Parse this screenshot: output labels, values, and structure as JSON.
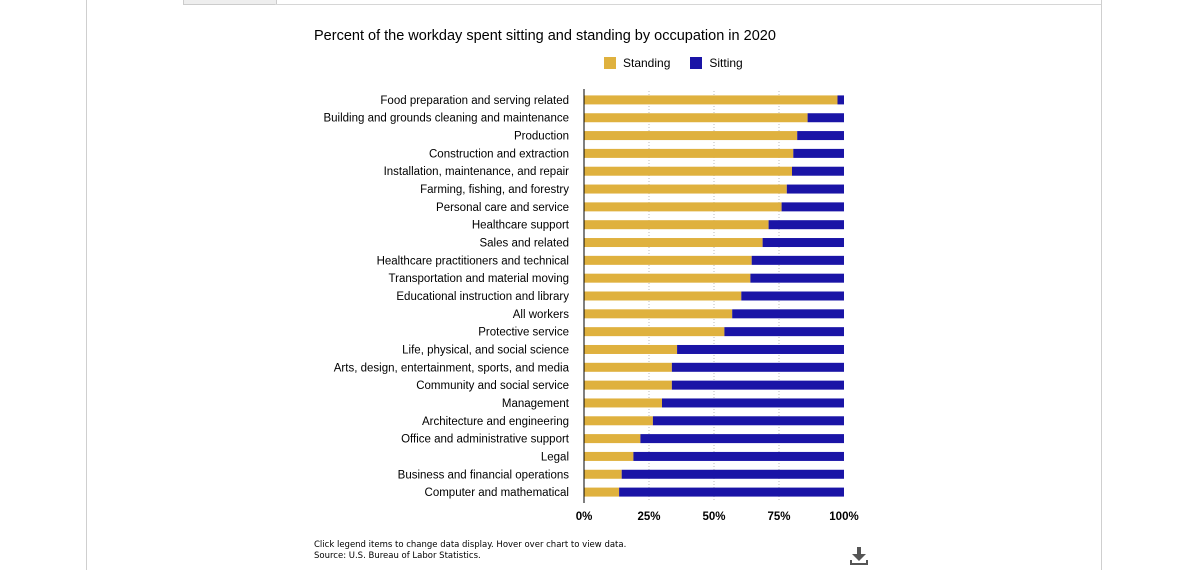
{
  "chart_data": {
    "type": "bar",
    "orientation": "horizontal",
    "stacked": "percent",
    "title": "Percent of the workday spent sitting and standing by occupation in 2020",
    "categories": [
      "Food preparation and serving related",
      "Building and grounds cleaning and maintenance",
      "Production",
      "Construction and extraction",
      "Installation, maintenance, and repair",
      "Farming, fishing, and forestry",
      "Personal care and service",
      "Healthcare support",
      "Sales and related",
      "Healthcare practitioners and technical",
      "Transportation and material moving",
      "Educational instruction and library",
      "All workers",
      "Protective service",
      "Life, physical, and social science",
      "Arts, design, entertainment, sports, and media",
      "Community and social service",
      "Management",
      "Architecture and engineering",
      "Office and administrative support",
      "Legal",
      "Business and financial operations",
      "Computer and mathematical"
    ],
    "series": [
      {
        "name": "Standing",
        "color": "#dfb13e",
        "values": [
          97.5,
          86,
          82,
          80.5,
          80,
          78,
          76,
          71,
          68.7,
          64.5,
          64,
          60.5,
          57,
          54,
          35.8,
          33.8,
          33.8,
          30,
          26.5,
          21.7,
          19,
          14.5,
          13.5
        ]
      },
      {
        "name": "Sitting",
        "color": "#1a14a6",
        "values": [
          2.5,
          14,
          18,
          19.5,
          20,
          22,
          24,
          29,
          31.3,
          35.5,
          36,
          39.5,
          43,
          46,
          64.2,
          66.2,
          66.2,
          70,
          73.5,
          78.3,
          81,
          85.5,
          86.5
        ]
      }
    ],
    "xlim": [
      0,
      100
    ],
    "x_ticks": [
      "0%",
      "25%",
      "50%",
      "75%",
      "100%"
    ],
    "grid": true,
    "legend_position": "top"
  },
  "footer": {
    "note": "Click legend items to change data display. Hover over chart to view data.",
    "source": "Source: U.S. Bureau of Labor Statistics."
  },
  "icons": {
    "download": "download-icon"
  }
}
